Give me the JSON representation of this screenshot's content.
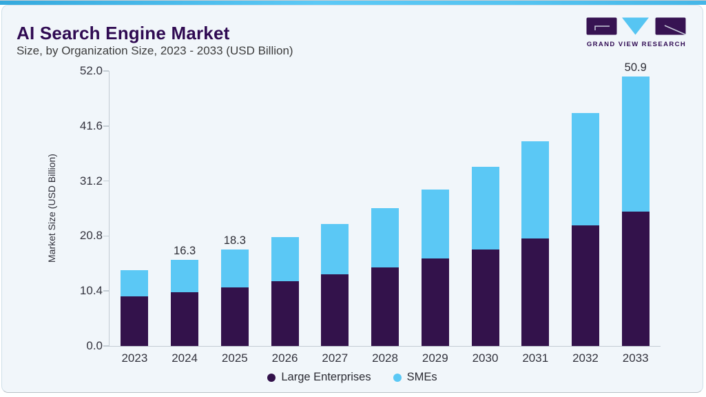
{
  "header": {
    "title": "AI Search Engine Market",
    "subtitle": "Size, by Organization Size, 2023 - 2033 (USD Billion)"
  },
  "logo": {
    "text": "GRAND VIEW RESEARCH"
  },
  "colors": {
    "accent_stripe": "#54c3f0",
    "card_background": "#f1f6fa",
    "title_purple": "#2f0a52",
    "large_enterprises": "#33124b",
    "smes": "#5bc8f5",
    "axis_line": "#c3ccd3"
  },
  "chart_data": {
    "type": "bar",
    "stacked": true,
    "title": "AI Search Engine Market Size, by Organization Size, 2023 - 2033 (USD Billion)",
    "xlabel": "",
    "ylabel": "Market Size (USD Billion)",
    "ylim": [
      0,
      52
    ],
    "yticks": [
      "0.0",
      "10.4",
      "20.8",
      "31.2",
      "41.6",
      "52.0"
    ],
    "grid": false,
    "legend_position": "bottom",
    "categories": [
      "2023",
      "2024",
      "2025",
      "2026",
      "2027",
      "2028",
      "2029",
      "2030",
      "2031",
      "2032",
      "2033"
    ],
    "series": [
      {
        "name": "Large Enterprises",
        "color": "#33124b",
        "values": [
          9.4,
          10.2,
          11.1,
          12.2,
          13.5,
          14.8,
          16.5,
          18.3,
          20.3,
          22.8,
          25.4
        ]
      },
      {
        "name": "SMEs",
        "color": "#5bc8f5",
        "values": [
          5.0,
          6.1,
          7.2,
          8.4,
          9.6,
          11.3,
          13.1,
          15.6,
          18.4,
          21.3,
          25.5
        ]
      }
    ],
    "totals": [
      14.4,
      16.3,
      18.3,
      20.6,
      23.1,
      26.1,
      29.6,
      33.9,
      38.7,
      44.1,
      50.9
    ],
    "bar_labels": [
      "",
      "16.3",
      "18.3",
      "",
      "",
      "",
      "",
      "",
      "",
      "",
      "50.9"
    ]
  }
}
